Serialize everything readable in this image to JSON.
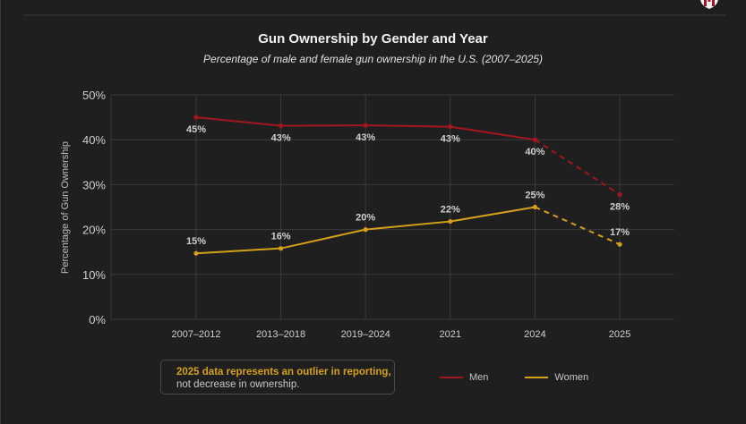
{
  "header": {
    "logo_icon": "shield-logo-icon"
  },
  "colors": {
    "men": "#a3161f",
    "women": "#d4a017",
    "grid": "#3a3a3a",
    "tick_text": "#cfcfcf",
    "label_text": "#cfcfcf"
  },
  "note": {
    "highlight": "2025 data represents an outlier in reporting,",
    "rest": "not decrease in ownership."
  },
  "chart_data": {
    "type": "line",
    "title": "Gun Ownership by Gender and Year",
    "subtitle": "Percentage of male and female gun ownership in the U.S. (2007–2025)",
    "xlabel": "",
    "ylabel": "Percentage of Gun Ownership",
    "categories": [
      "2007–2012",
      "2013–2018",
      "2019–2024",
      "2021",
      "2024",
      "2025"
    ],
    "ylim": [
      0,
      50
    ],
    "yticks": [
      0,
      10,
      20,
      30,
      40,
      50
    ],
    "ytick_labels": [
      "0%",
      "10%",
      "20%",
      "30%",
      "40%",
      "50%"
    ],
    "grid": true,
    "legend_position": "bottom-right",
    "series": [
      {
        "name": "Men",
        "values": [
          45,
          43,
          43,
          43,
          40,
          28
        ],
        "plot_values": [
          45,
          43.1,
          43.2,
          42.9,
          40,
          27.8
        ],
        "labels": [
          "45%",
          "43%",
          "43%",
          "43%",
          "40%",
          "28%"
        ],
        "label_position": "below",
        "dashed_last_segment": true
      },
      {
        "name": "Women",
        "values": [
          15,
          16,
          20,
          22,
          25,
          17
        ],
        "plot_values": [
          14.7,
          15.8,
          20,
          21.8,
          25,
          16.7
        ],
        "labels": [
          "15%",
          "16%",
          "20%",
          "22%",
          "25%",
          "17%"
        ],
        "label_position": "above",
        "dashed_last_segment": true
      }
    ],
    "annotation": "2025 data represents an outlier in reporting, not decrease in ownership."
  }
}
